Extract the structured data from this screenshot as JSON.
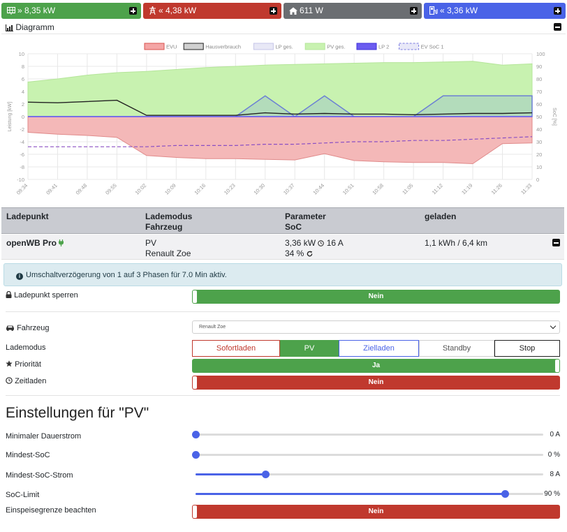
{
  "tiles": {
    "grid": {
      "value": "» 8,35 kW",
      "icon": "grid-icon"
    },
    "evu": {
      "value": "« 4,38 kW",
      "icon": "power-tower-icon"
    },
    "house": {
      "value": "611 W",
      "icon": "house-icon"
    },
    "charge": {
      "value": "« 3,36 kW",
      "icon": "charger-icon"
    }
  },
  "diagram": {
    "title": "Diagramm"
  },
  "chart_data": {
    "type": "area",
    "legend": [
      "EVU",
      "Hausverbrauch",
      "LP ges.",
      "PV ges.",
      "LP 2",
      "EV SoC 1"
    ],
    "ylabel_left": "Leistung [kW]",
    "ylabel_right": "SoC [%]",
    "ylim_left": [
      -10,
      10
    ],
    "ylim_right": [
      0,
      100
    ],
    "yticks_left": [
      "10",
      "8",
      "6",
      "4",
      "2",
      "0",
      "-2",
      "-4",
      "-6",
      "-8",
      "-10"
    ],
    "yticks_right": [
      "100",
      "90",
      "80",
      "70",
      "60",
      "50",
      "40",
      "30",
      "20",
      "10",
      "0"
    ],
    "x": [
      "09:34",
      "09:41",
      "09:48",
      "09:55",
      "10:02",
      "10:09",
      "10:16",
      "10:23",
      "10:30",
      "10:37",
      "10:44",
      "10:51",
      "10:58",
      "11:05",
      "11:12",
      "11:19",
      "11:26",
      "11:33"
    ],
    "series": [
      {
        "name": "PV ges.",
        "values": [
          5.5,
          6.0,
          6.6,
          7.0,
          7.2,
          7.5,
          7.8,
          8.0,
          8.2,
          8.3,
          8.4,
          8.5,
          8.6,
          8.6,
          8.7,
          8.8,
          8.2,
          8.4
        ]
      },
      {
        "name": "EVU",
        "values": [
          -2.5,
          -2.8,
          -3.0,
          -3.3,
          -6.2,
          -6.5,
          -6.7,
          -6.7,
          -6.8,
          -6.9,
          -5.9,
          -7.0,
          -7.2,
          -7.3,
          -7.3,
          -7.5,
          -4.3,
          -4.2
        ]
      },
      {
        "name": "Hausverbrauch",
        "values": [
          2.3,
          2.2,
          2.4,
          2.6,
          0.2,
          0.2,
          0.2,
          0.2,
          0.6,
          0.4,
          0.5,
          0.4,
          0.4,
          0.3,
          0.4,
          0.5,
          0.5,
          0.6
        ]
      },
      {
        "name": "LP ges.",
        "values": [
          0,
          0,
          0,
          0,
          0,
          0,
          0,
          0,
          3.3,
          0,
          3.3,
          0,
          0,
          0,
          3.3,
          3.3,
          3.3,
          3.3
        ]
      },
      {
        "name": "EV SoC 1",
        "values": [
          26,
          26,
          26,
          26,
          26,
          27,
          27,
          27,
          28,
          28,
          29,
          30,
          30,
          31,
          31,
          32,
          33,
          34
        ]
      }
    ]
  },
  "table": {
    "headers": {
      "c1": "Ladepunkt",
      "c2a": "Lademodus",
      "c2b": "Fahrzeug",
      "c3a": "Parameter",
      "c3b": "SoC",
      "c4": "geladen"
    },
    "row": {
      "name": "openWB Pro",
      "mode": "PV",
      "vehicle": "Renault Zoe",
      "power": "3,36 kW",
      "current": "16 A",
      "soc": "34 %",
      "charged": "1,1 kWh / 6,4 km"
    }
  },
  "alert": {
    "text": "Umschaltverzögerung von 1 auf 3 Phasen für 7.0 Min aktiv."
  },
  "settings": {
    "lock": {
      "label": "Ladepunkt sperren",
      "value": "Nein"
    },
    "vehicle": {
      "label": "Fahrzeug",
      "selected": "Renault Zoe"
    },
    "mode": {
      "label": "Lademodus",
      "options": [
        "Sofortladen",
        "PV",
        "Zielladen",
        "Standby",
        "Stop"
      ],
      "selected": "PV"
    },
    "priority": {
      "label": "Priorität",
      "value": "Ja"
    },
    "timer": {
      "label": "Zeitladen",
      "value": "Nein"
    }
  },
  "pv": {
    "title": "Einstellungen für \"PV\"",
    "min_current": {
      "label": "Minimaler Dauerstrom",
      "value": "0 A",
      "fraction": 0.0
    },
    "min_soc": {
      "label": "Mindest-SoC",
      "value": "0 %",
      "fraction": 0.0
    },
    "min_soc_current": {
      "label": "Mindest-SoC-Strom",
      "value": "8 A",
      "fraction": 0.2
    },
    "soc_limit": {
      "label": "SoC-Limit",
      "value": "90 %",
      "fraction": 0.89
    },
    "feed_limit": {
      "label": "Einspeisegrenze beachten",
      "value": "Nein"
    }
  },
  "colors": {
    "green": "#4da24b",
    "red": "#c0392e",
    "gray": "#6b6e72",
    "blue": "#4a63e7"
  }
}
